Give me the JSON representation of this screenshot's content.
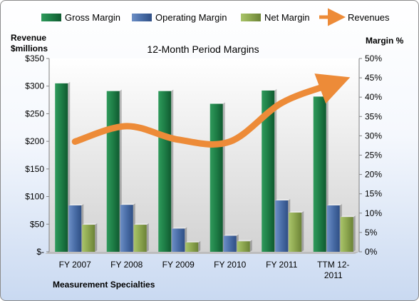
{
  "chart_data": {
    "type": "bar",
    "title": "12-Month Period Margins",
    "left_axis_label_line1": "Revenue",
    "left_axis_label_line2": "$millions",
    "right_axis_label": "Margin %",
    "footer": "Measurement Specialties",
    "categories": [
      [
        "FY 2007"
      ],
      [
        "FY 2008"
      ],
      [
        "FY 2009"
      ],
      [
        "FY 2010"
      ],
      [
        "FY 2011"
      ],
      [
        "TTM 12-",
        "2011"
      ]
    ],
    "y_left": {
      "lim": [
        0,
        350
      ],
      "ticks": [
        0,
        50,
        100,
        150,
        200,
        250,
        300,
        350
      ],
      "tick_labels": [
        "$-",
        "$50",
        "$100",
        "$150",
        "$200",
        "$250",
        "$300",
        "$350"
      ]
    },
    "y_right": {
      "lim": [
        0,
        50
      ],
      "ticks": [
        0,
        5,
        10,
        15,
        20,
        25,
        30,
        35,
        40,
        45,
        50
      ],
      "tick_labels": [
        "0%",
        "5%",
        "10%",
        "15%",
        "20%",
        "25%",
        "30%",
        "35%",
        "40%",
        "45%",
        "50%"
      ]
    },
    "series": [
      {
        "name": "Gross Margin",
        "kind": "bar",
        "axis": "left",
        "color": "#1e7a45",
        "values": [
          305,
          291,
          291,
          268,
          292,
          281
        ]
      },
      {
        "name": "Operating Margin",
        "kind": "bar",
        "axis": "left",
        "color": "#4a6fa8",
        "values": [
          84,
          85,
          42,
          29,
          93,
          84
        ]
      },
      {
        "name": "Net Margin",
        "kind": "bar",
        "axis": "left",
        "color": "#8fa951",
        "values": [
          49,
          49,
          17,
          19,
          71,
          63
        ]
      },
      {
        "name": "Revenues",
        "kind": "line",
        "axis": "right",
        "color": "#ed8b38",
        "values": [
          28.5,
          32.5,
          29,
          28.5,
          38.5,
          43.5
        ]
      }
    ],
    "legend_position": "top",
    "grid": false
  }
}
